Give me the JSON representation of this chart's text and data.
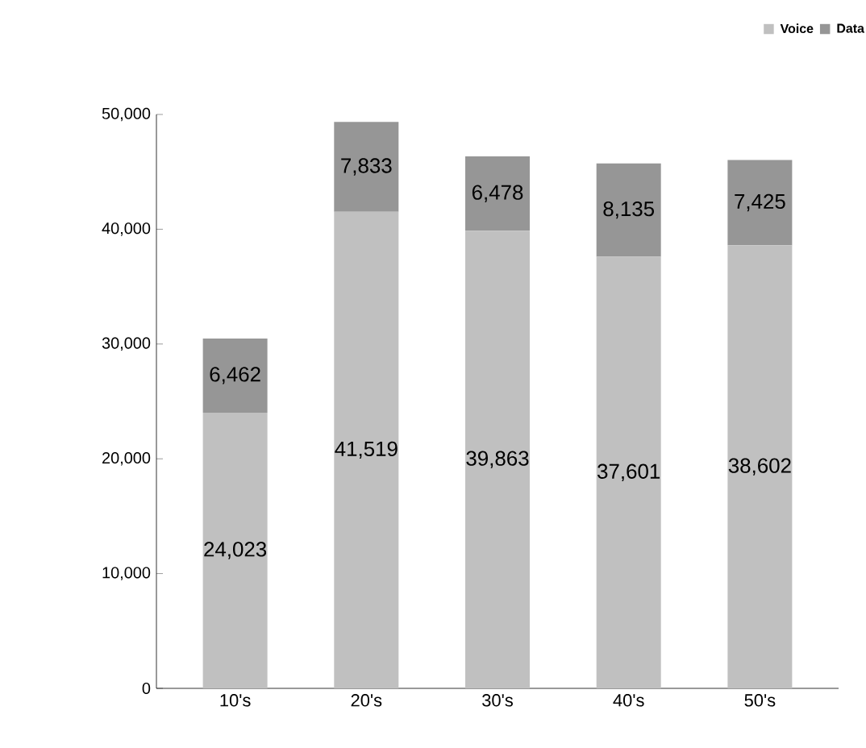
{
  "chart_data": {
    "type": "bar",
    "stacked": true,
    "categories": [
      "10's",
      "20's",
      "30's",
      "40's",
      "50's"
    ],
    "series": [
      {
        "name": "Voice",
        "color": "#c0c0c0",
        "values": [
          24023,
          41519,
          39863,
          37601,
          38602
        ],
        "value_labels": [
          "24,023",
          "41,519",
          "39,863",
          "37,601",
          "38,602"
        ]
      },
      {
        "name": "Data",
        "color": "#969696",
        "values": [
          6462,
          7833,
          6478,
          8135,
          7425
        ],
        "value_labels": [
          "6,462",
          "7,833",
          "6,478",
          "8,135",
          "7,425"
        ]
      }
    ],
    "ylim": [
      0,
      50000
    ],
    "yticks": [
      {
        "value": 0,
        "label": "0"
      },
      {
        "value": 10000,
        "label": "10,000"
      },
      {
        "value": 20000,
        "label": "20,000"
      },
      {
        "value": 30000,
        "label": "30,000"
      },
      {
        "value": 40000,
        "label": "40,000"
      },
      {
        "value": 50000,
        "label": "50,000"
      }
    ],
    "legend": "top right"
  }
}
